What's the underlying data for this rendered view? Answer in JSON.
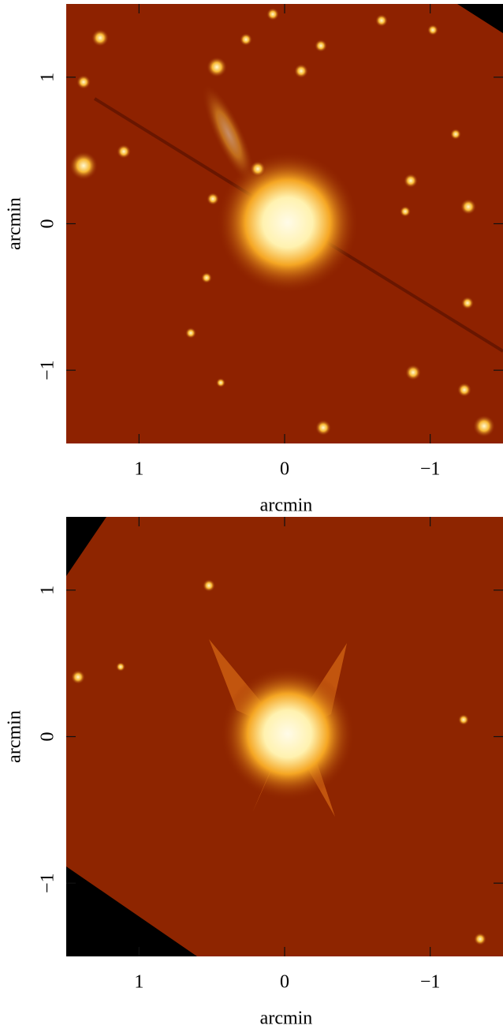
{
  "chart_data": [
    {
      "type": "image",
      "xlabel": "arcmin",
      "ylabel": "arcmin",
      "xlim": [
        1.5,
        -1.5
      ],
      "ylim": [
        -1.5,
        1.5
      ],
      "xticks": [
        1,
        0,
        {
          "value": -1,
          "label": "−1"
        }
      ],
      "yticks": [
        {
          "value": -1,
          "label": "−1"
        },
        0,
        1
      ]
    },
    {
      "type": "image",
      "xlabel": "arcmin",
      "ylabel": "arcmin",
      "xlim": [
        1.5,
        -1.5
      ],
      "ylim": [
        -1.5,
        1.5
      ],
      "xticks": [
        1,
        0,
        {
          "value": -1,
          "label": "−1"
        }
      ],
      "yticks": [
        {
          "value": -1,
          "label": "−1"
        },
        0,
        1
      ]
    }
  ]
}
